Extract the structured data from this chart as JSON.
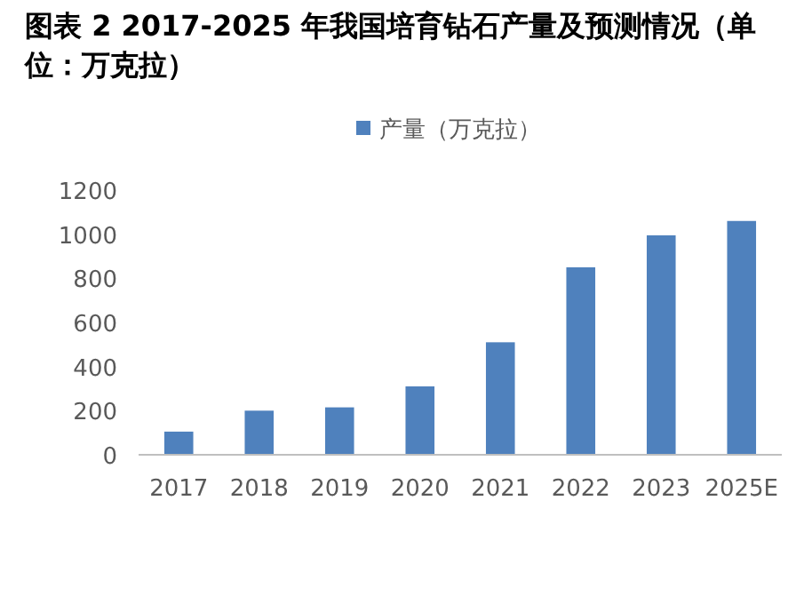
{
  "chart_data": {
    "type": "bar",
    "title": "图表 2 2017-2025 年我国培育钻石产量及预测情况（单位：万克拉）",
    "categories": [
      "2017",
      "2018",
      "2019",
      "2020",
      "2021",
      "2022",
      "2023",
      "2025E"
    ],
    "series": [
      {
        "name": "产量（万克拉）",
        "color": "#4f81bd",
        "values": [
          105,
          200,
          215,
          310,
          510,
          850,
          995,
          1060
        ]
      }
    ],
    "ylim": [
      0,
      1200
    ],
    "yticks": [
      0,
      200,
      400,
      600,
      800,
      1000,
      1200
    ],
    "grid": false,
    "legend": "top"
  }
}
